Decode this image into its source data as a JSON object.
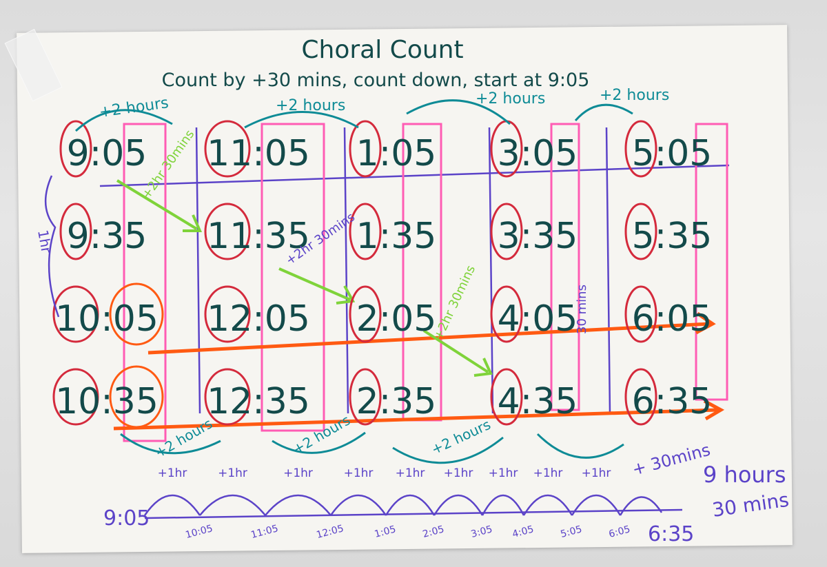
{
  "header": {
    "title": "Choral Count",
    "instruction": "Count by +30 mins, count down, start at 9:05"
  },
  "columns": [
    {
      "times": [
        "9:05",
        "9:35",
        "10:05",
        "10:35"
      ]
    },
    {
      "times": [
        "11:05",
        "11:35",
        "12:05",
        "12:35"
      ]
    },
    {
      "times": [
        "1:05",
        "1:35",
        "2:05",
        "2:35"
      ]
    },
    {
      "times": [
        "3:05",
        "3:35",
        "4:05",
        "4:35"
      ]
    },
    {
      "times": [
        "5:05",
        "5:35",
        "6:05",
        "6:35"
      ]
    }
  ],
  "annotations": {
    "top_arrows": [
      "+2 hours",
      "+2 hours",
      "+2 hours",
      "+2 hours"
    ],
    "diag_1": "+2hr 30mins",
    "diag_2": "+2hr 30mins",
    "diag_3": "+2hr 30mins",
    "left_side": "1hr",
    "thirty_side": "30 mins",
    "bottom_arrows": [
      "+2 hours",
      "+2 hours",
      "+2 hours"
    ],
    "plus_one_hr": "+1hr",
    "plus_thirty": "+ 30mins"
  },
  "number_line": {
    "start": "9:05",
    "ticks": [
      "10:05",
      "11:05",
      "12:05",
      "1:05",
      "2:05",
      "3:05",
      "4:05",
      "5:05",
      "6:05"
    ],
    "end": "6:35"
  },
  "result": {
    "hours": "9 hours",
    "mins": "30 mins"
  },
  "colors": {
    "ink_teal": "#134a4a",
    "pen_red": "#d42a3c",
    "pen_pink": "#ff5cb4",
    "pen_purple": "#5b43c8",
    "pen_orange": "#ff5a12",
    "pen_green": "#7fd33a",
    "pen_cyan": "#0e8b96"
  }
}
